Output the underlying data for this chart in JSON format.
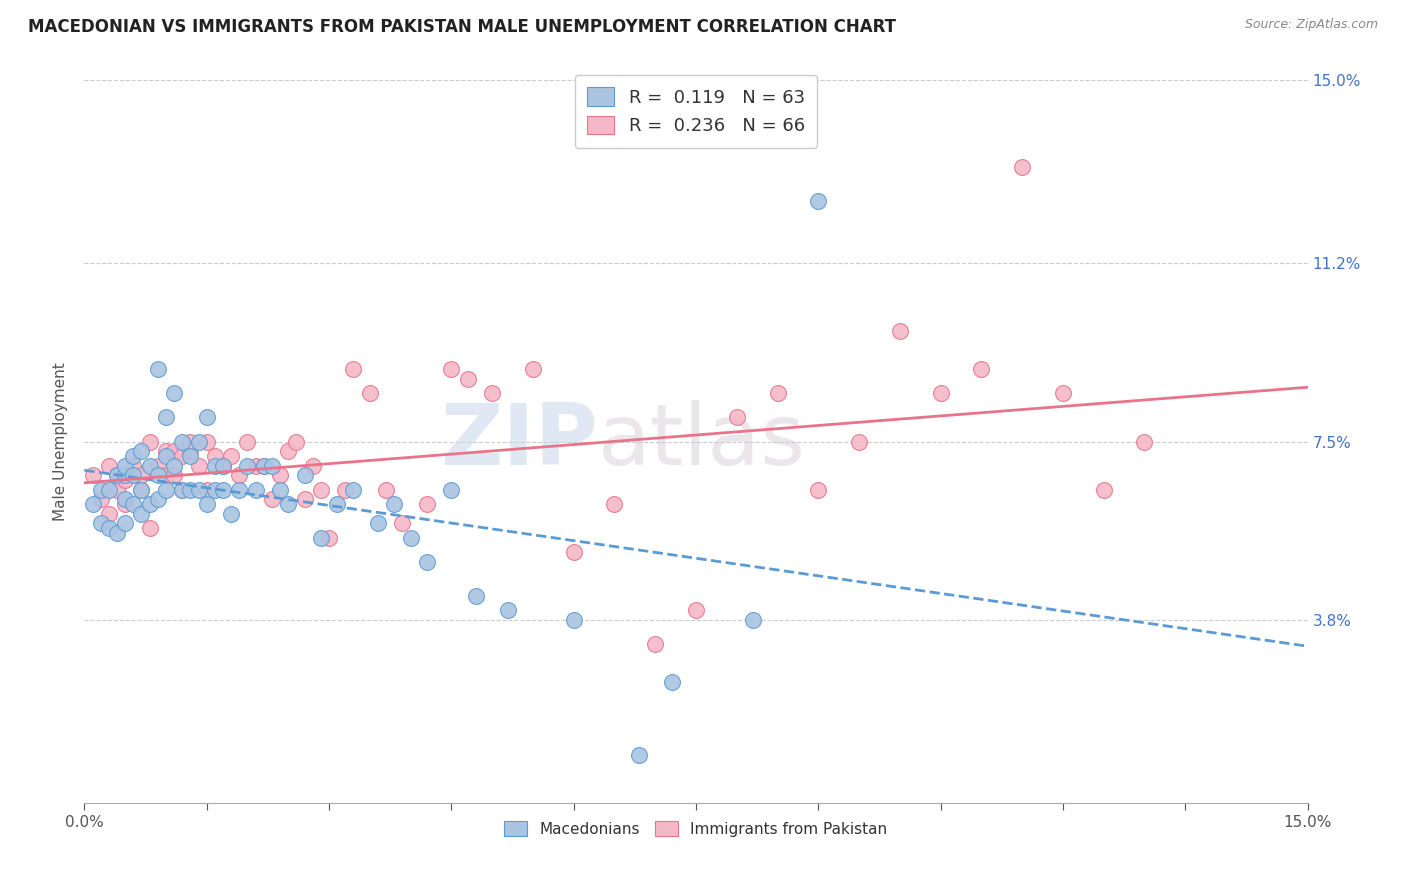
{
  "title": "MACEDONIAN VS IMMIGRANTS FROM PAKISTAN MALE UNEMPLOYMENT CORRELATION CHART",
  "source": "Source: ZipAtlas.com",
  "ylabel": "Male Unemployment",
  "xlim": [
    0,
    0.15
  ],
  "ylim": [
    0,
    0.15
  ],
  "macedonians_fill_color": "#aac4e2",
  "macedonians_edge_color": "#5b9bd5",
  "pakistan_fill_color": "#f5b8c8",
  "pakistan_edge_color": "#e8748a",
  "macedonians_line_color": "#5b9bd5",
  "pakistan_line_color": "#e8748a",
  "legend_R_mac": "0.119",
  "legend_N_mac": "63",
  "legend_R_pak": "0.236",
  "legend_N_pak": "66",
  "tick_fontsize": 11,
  "axis_label_fontsize": 11,
  "title_fontsize": 12,
  "right_tick_color": "#4472c4",
  "macedonians_x": [
    0.001,
    0.002,
    0.002,
    0.003,
    0.003,
    0.004,
    0.004,
    0.005,
    0.005,
    0.005,
    0.005,
    0.006,
    0.006,
    0.006,
    0.007,
    0.007,
    0.007,
    0.008,
    0.008,
    0.009,
    0.009,
    0.009,
    0.01,
    0.01,
    0.01,
    0.011,
    0.011,
    0.012,
    0.012,
    0.013,
    0.013,
    0.014,
    0.014,
    0.015,
    0.015,
    0.016,
    0.016,
    0.017,
    0.017,
    0.018,
    0.019,
    0.02,
    0.021,
    0.022,
    0.023,
    0.024,
    0.025,
    0.027,
    0.029,
    0.031,
    0.033,
    0.036,
    0.038,
    0.04,
    0.042,
    0.045,
    0.048,
    0.052,
    0.06,
    0.068,
    0.072,
    0.082,
    0.09
  ],
  "macedonians_y": [
    0.062,
    0.058,
    0.065,
    0.057,
    0.065,
    0.056,
    0.068,
    0.058,
    0.063,
    0.068,
    0.07,
    0.062,
    0.068,
    0.072,
    0.06,
    0.065,
    0.073,
    0.062,
    0.07,
    0.063,
    0.068,
    0.09,
    0.065,
    0.072,
    0.08,
    0.07,
    0.085,
    0.065,
    0.075,
    0.065,
    0.072,
    0.065,
    0.075,
    0.062,
    0.08,
    0.07,
    0.065,
    0.065,
    0.07,
    0.06,
    0.065,
    0.07,
    0.065,
    0.07,
    0.07,
    0.065,
    0.062,
    0.068,
    0.055,
    0.062,
    0.065,
    0.058,
    0.062,
    0.055,
    0.05,
    0.065,
    0.043,
    0.04,
    0.038,
    0.01,
    0.025,
    0.038,
    0.125
  ],
  "pakistan_x": [
    0.001,
    0.002,
    0.003,
    0.003,
    0.004,
    0.004,
    0.005,
    0.005,
    0.006,
    0.006,
    0.007,
    0.007,
    0.008,
    0.008,
    0.009,
    0.01,
    0.01,
    0.011,
    0.011,
    0.012,
    0.012,
    0.013,
    0.013,
    0.014,
    0.015,
    0.015,
    0.016,
    0.017,
    0.018,
    0.019,
    0.02,
    0.021,
    0.022,
    0.023,
    0.024,
    0.025,
    0.026,
    0.027,
    0.028,
    0.029,
    0.03,
    0.032,
    0.033,
    0.035,
    0.037,
    0.039,
    0.042,
    0.045,
    0.047,
    0.05,
    0.055,
    0.06,
    0.065,
    0.07,
    0.075,
    0.08,
    0.085,
    0.09,
    0.095,
    0.1,
    0.105,
    0.11,
    0.115,
    0.12,
    0.125,
    0.13
  ],
  "pakistan_y": [
    0.068,
    0.063,
    0.06,
    0.07,
    0.065,
    0.068,
    0.062,
    0.067,
    0.068,
    0.07,
    0.065,
    0.068,
    0.075,
    0.057,
    0.07,
    0.068,
    0.073,
    0.068,
    0.073,
    0.065,
    0.072,
    0.073,
    0.075,
    0.07,
    0.075,
    0.065,
    0.072,
    0.07,
    0.072,
    0.068,
    0.075,
    0.07,
    0.07,
    0.063,
    0.068,
    0.073,
    0.075,
    0.063,
    0.07,
    0.065,
    0.055,
    0.065,
    0.09,
    0.085,
    0.065,
    0.058,
    0.062,
    0.09,
    0.088,
    0.085,
    0.09,
    0.052,
    0.062,
    0.033,
    0.04,
    0.08,
    0.085,
    0.065,
    0.075,
    0.098,
    0.085,
    0.09,
    0.132,
    0.085,
    0.065,
    0.075
  ]
}
